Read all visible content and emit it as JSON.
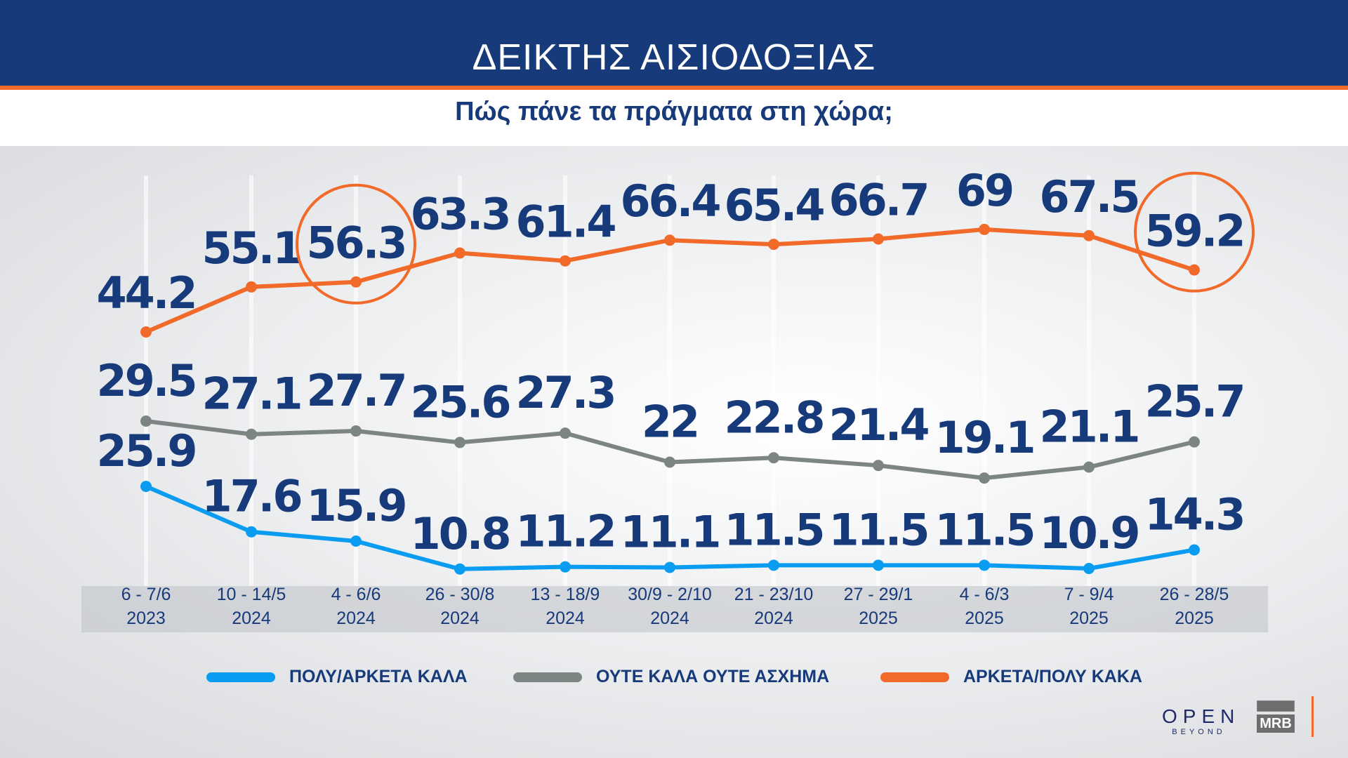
{
  "header": {
    "title": "ΔΕΙΚΤΗΣ ΑΙΣΙΟΔΟΞΙΑΣ",
    "subtitle": "Πώς πάνε τα πράγματα στη χώρα;"
  },
  "chart_data": {
    "type": "line",
    "categories": [
      [
        "6 - 7/6",
        "2023"
      ],
      [
        "10 - 14/5",
        "2024"
      ],
      [
        "4 - 6/6",
        "2024"
      ],
      [
        "26 - 30/8",
        "2024"
      ],
      [
        "13 - 18/9",
        "2024"
      ],
      [
        "30/9 - 2/10",
        "2024"
      ],
      [
        "21 - 23/10",
        "2024"
      ],
      [
        "27 - 29/1",
        "2025"
      ],
      [
        "4 - 6/3",
        "2025"
      ],
      [
        "7 - 9/4",
        "2025"
      ],
      [
        "26 - 28/5",
        "2025"
      ]
    ],
    "series": [
      {
        "name": "ΑΡΚΕΤΑ/ΠΟΛΥ ΚΑΚΑ",
        "color": "#f26a2a",
        "values": [
          44.2,
          55.1,
          56.3,
          63.3,
          61.4,
          66.4,
          65.4,
          66.7,
          69,
          67.5,
          59.2
        ],
        "labels": [
          "44.2",
          "55.1",
          "56.3",
          "63.3",
          "61.4",
          "66.4",
          "65.4",
          "66.7",
          "69",
          "67.5",
          "59.2"
        ],
        "highlighted": [
          "56.3",
          "59.2"
        ]
      },
      {
        "name": "ΟΥΤΕ ΚΑΛΑ ΟΥΤΕ ΑΣΧΗΜΑ",
        "color": "#7d8584",
        "values": [
          29.5,
          27.1,
          27.7,
          25.6,
          27.3,
          22,
          22.8,
          21.4,
          19.1,
          21.1,
          25.7
        ],
        "labels": [
          "29.5",
          "27.1",
          "27.7",
          "25.6",
          "27.3",
          "22",
          "22.8",
          "21.4",
          "19.1",
          "21.1",
          "25.7"
        ]
      },
      {
        "name": "ΠΟΛΥ/ΑΡΚΕΤΑ ΚΑΛΑ",
        "color": "#0a9cf0",
        "values": [
          25.9,
          17.6,
          15.9,
          10.8,
          11.2,
          11.1,
          11.5,
          11.5,
          11.5,
          10.9,
          14.3
        ],
        "labels": [
          "25.9",
          "17.6",
          "15.9",
          "10.8",
          "11.2",
          "11.1",
          "11.5",
          "11.5",
          "11.5",
          "10.9",
          "14.3"
        ]
      }
    ],
    "legend": [
      "ΠΟΛΥ/ΑΡΚΕΤΑ ΚΑΛΑ",
      "ΟΥΤΕ ΚΑΛΑ ΟΥΤΕ ΑΣΧΗΜΑ",
      "ΑΡΚΕΤΑ/ΠΟΛΥ ΚΑΚΑ"
    ],
    "legend_position": "bottom",
    "label_color": "#173a7a",
    "grid": false
  },
  "logos": {
    "open": "OPEN",
    "open_sub": "BEYOND",
    "mrb": "MRB"
  }
}
